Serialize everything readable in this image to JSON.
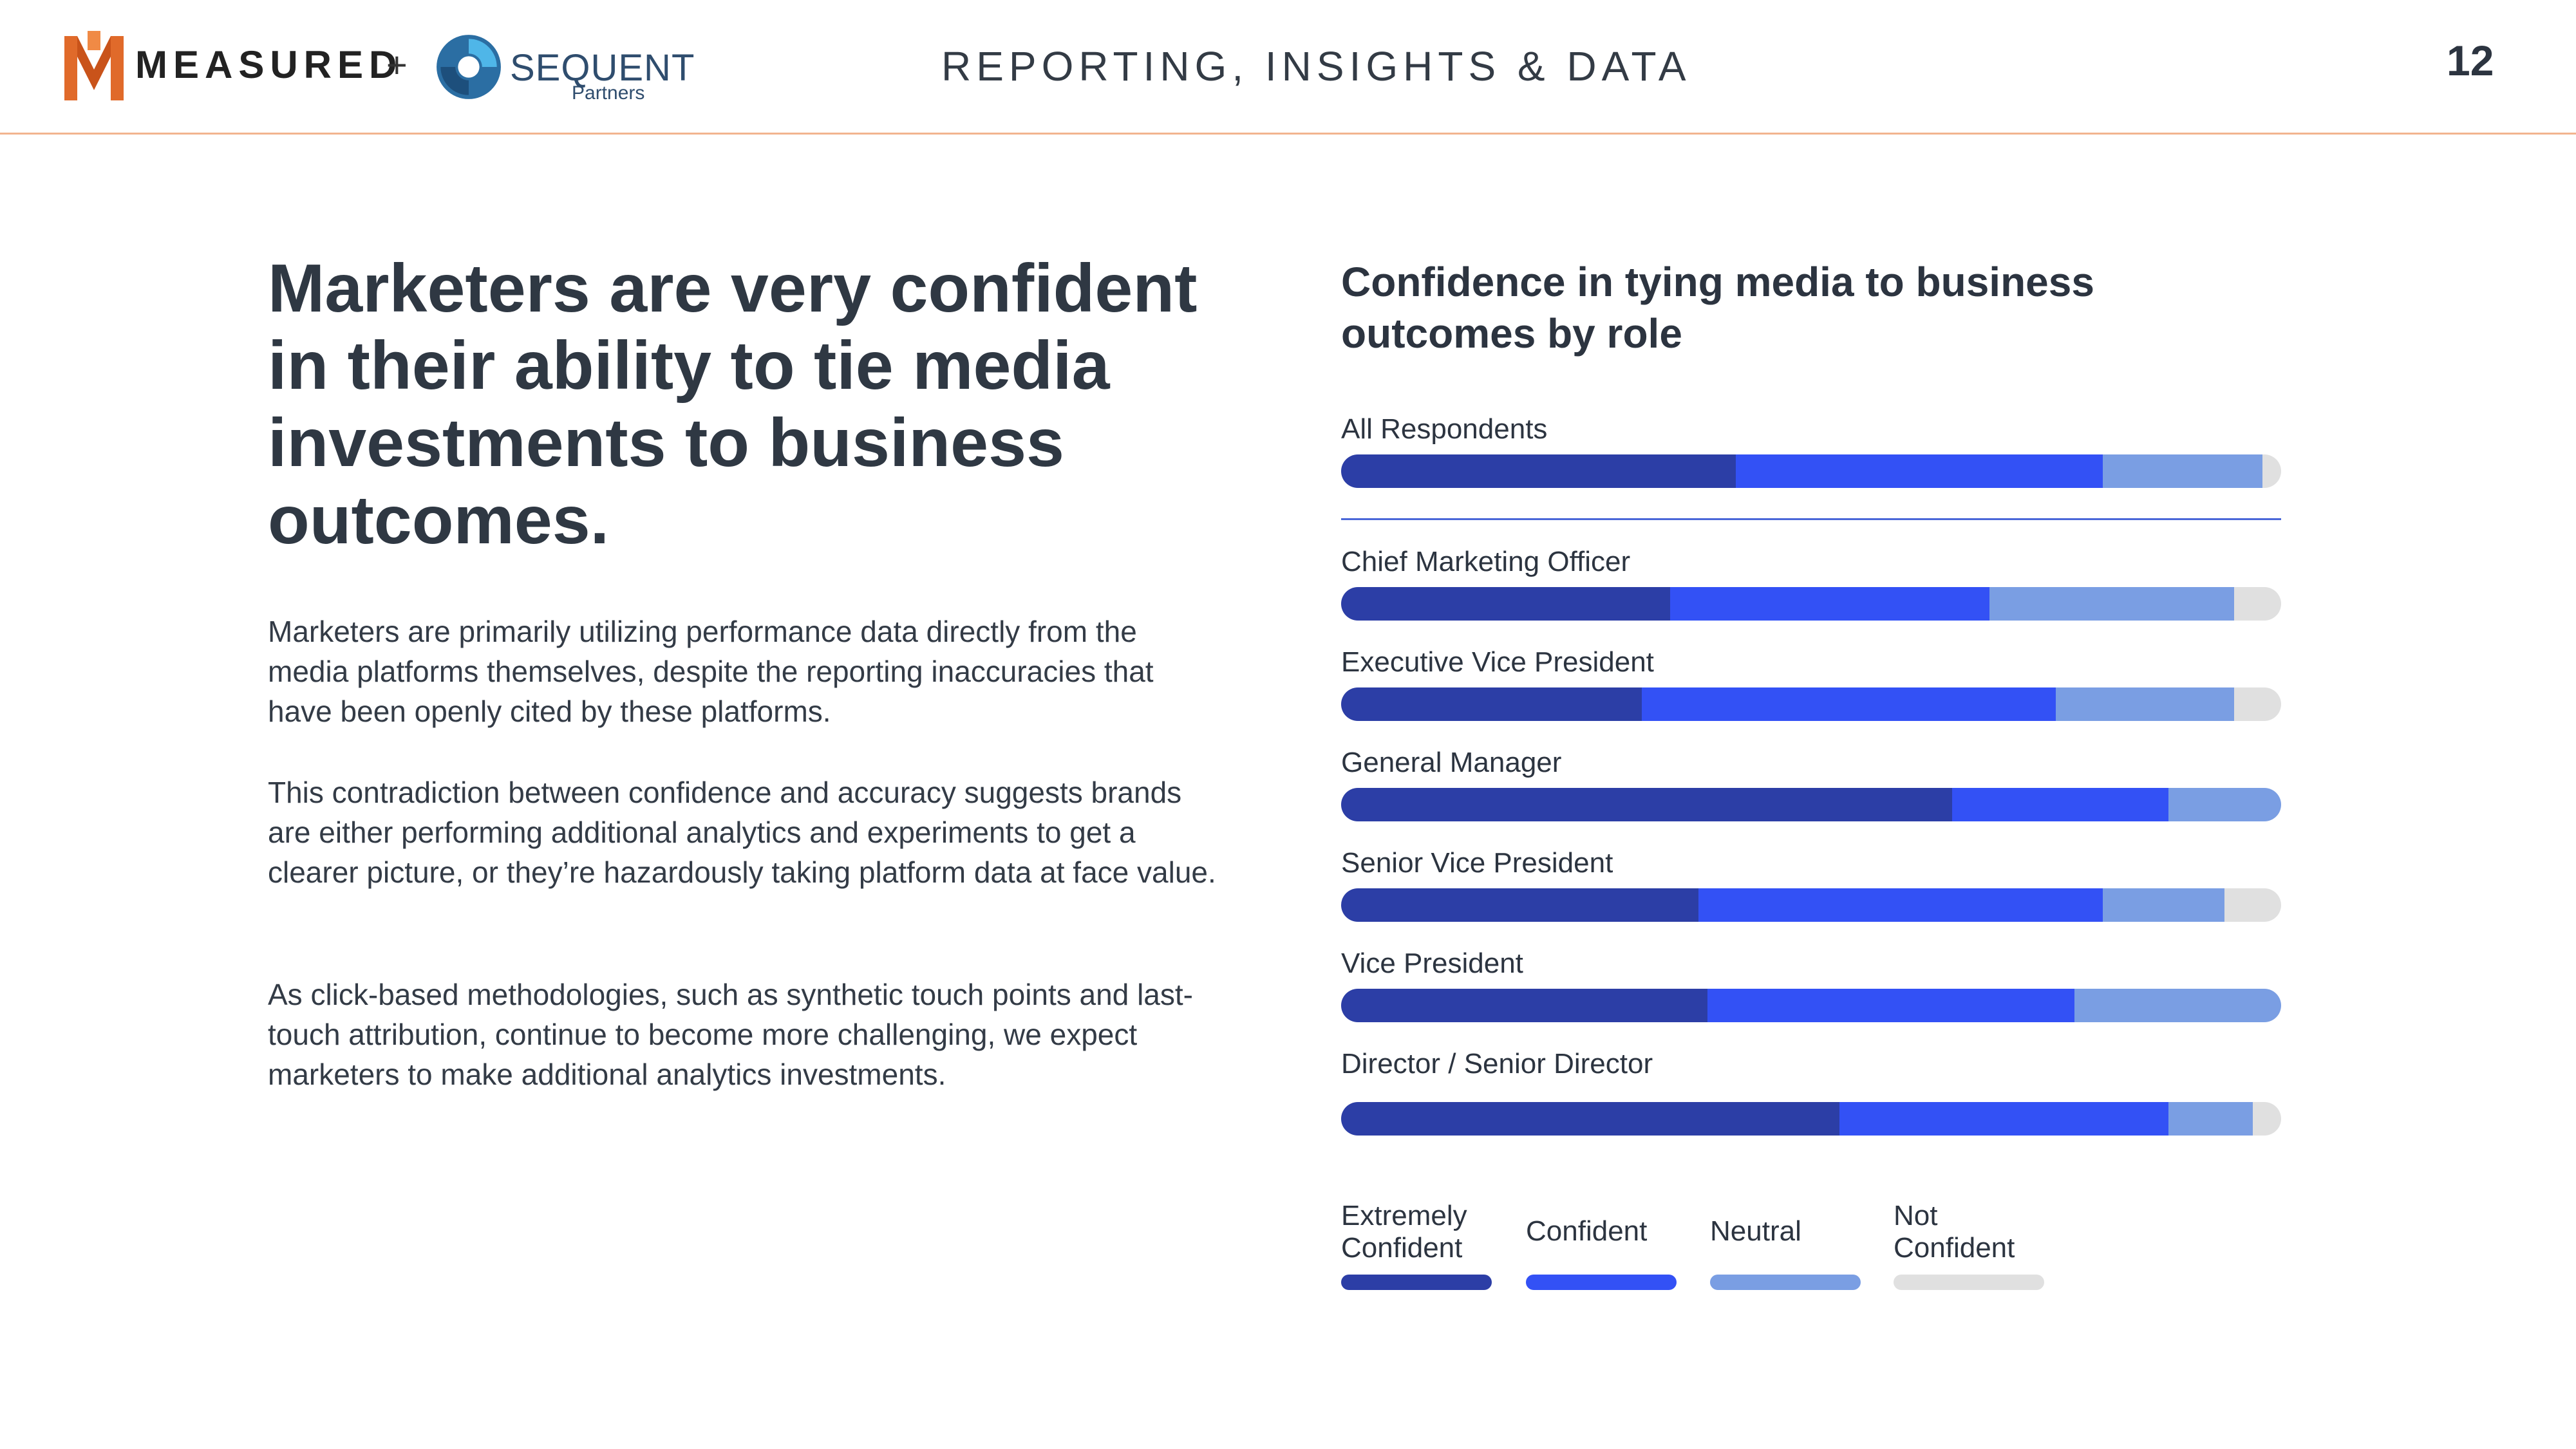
{
  "header": {
    "brand": "MEASURED",
    "plus": "+",
    "partner_name": "SEQUENT",
    "partner_sub": "Partners",
    "section_title": "REPORTING, INSIGHTS & DATA",
    "page_number": "12"
  },
  "left": {
    "headline": "Marketers are very confident in their ability to tie media investments to business outcomes.",
    "paragraphs": [
      "Marketers are primarily utilizing performance data directly from the media platforms themselves, despite the reporting inaccuracies that have been openly cited by these platforms.",
      "This contradiction between confidence and accuracy suggests brands are either performing additional analytics and experiments to get a clearer picture, or they’re hazardously taking platform data at face value.",
      "As click-based methodologies, such as synthetic touch points and last-touch attribution, continue to become more challenging, we expect marketers to make additional analytics investments."
    ]
  },
  "colors": {
    "extremely_confident": "#2c3ea6",
    "confident": "#3351f5",
    "neutral": "#7a9ee3",
    "not_confident": "#e0e0e0",
    "orange": "#e06a2a"
  },
  "chart_data": {
    "type": "bar",
    "orientation": "horizontal-stacked-100",
    "title": "Confidence in tying media to business outcomes by role",
    "categories": [
      "All Respondents",
      "Chief Marketing Officer",
      "Executive Vice President",
      "General Manager",
      "Senior Vice President",
      "Vice President",
      "Director / Senior Director"
    ],
    "series": [
      {
        "name": "Extremely Confident",
        "values": [
          42,
          35,
          32,
          65,
          38,
          39,
          53
        ]
      },
      {
        "name": "Confident",
        "values": [
          39,
          34,
          44,
          23,
          43,
          39,
          35
        ]
      },
      {
        "name": "Neutral",
        "values": [
          17,
          26,
          19,
          12,
          13,
          22,
          9
        ]
      },
      {
        "name": "Not Confident",
        "values": [
          2,
          5,
          5,
          0,
          6,
          0,
          3
        ]
      }
    ],
    "legend": [
      {
        "line1": "Extremely",
        "line2": "Confident"
      },
      {
        "line1": "Confident",
        "line2": ""
      },
      {
        "line1": "Neutral",
        "line2": ""
      },
      {
        "line1": "Not",
        "line2": "Confident"
      }
    ],
    "xlim": [
      0,
      100
    ],
    "legend_position": "bottom"
  }
}
